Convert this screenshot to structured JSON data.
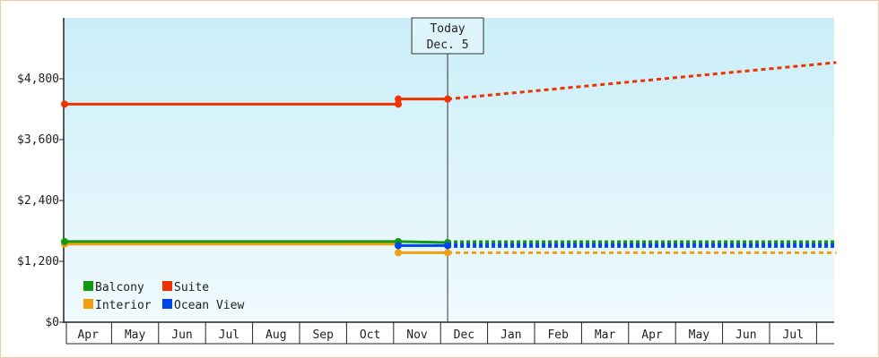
{
  "chart_data": {
    "type": "line",
    "title": "",
    "xlabel": "",
    "ylabel": "",
    "ylim": [
      0,
      6000
    ],
    "yticks": [
      {
        "value": 0,
        "label": "$0"
      },
      {
        "value": 1200,
        "label": "$1,200"
      },
      {
        "value": 2400,
        "label": "$2,400"
      },
      {
        "value": 3600,
        "label": "$3,600"
      },
      {
        "value": 4800,
        "label": "$4,800"
      }
    ],
    "x_start": "Apr",
    "categories": [
      "Apr",
      "May",
      "Jun",
      "Jul",
      "Aug",
      "Sep",
      "Oct",
      "Nov",
      "Dec",
      "Jan",
      "Feb",
      "Mar",
      "Apr",
      "May",
      "Jun",
      "Jul"
    ],
    "today": {
      "line1": "Today",
      "line2": "Dec. 5",
      "x": 8.15
    },
    "x_end": 16.42,
    "grid": false,
    "legend_position": "bottom-left",
    "series": [
      {
        "name": "Balcony",
        "color": "#119911",
        "values": [
          [
            0.0,
            1590
          ],
          [
            7.1,
            1590
          ],
          [
            8.15,
            1570
          ]
        ],
        "projection": [
          [
            8.15,
            1570
          ],
          [
            16.42,
            1570
          ]
        ],
        "dash": "dotted"
      },
      {
        "name": "Suite",
        "color": "#ee3300",
        "values": [
          [
            0.0,
            4300
          ],
          [
            7.1,
            4300
          ],
          [
            7.1,
            4400
          ],
          [
            8.15,
            4400
          ]
        ],
        "projection": [
          [
            8.15,
            4400
          ],
          [
            16.42,
            5120
          ]
        ],
        "dash": "dashed"
      },
      {
        "name": "Interior",
        "color": "#f0a010",
        "values": [
          [
            0.0,
            1540
          ],
          [
            7.1,
            1540
          ],
          [
            7.1,
            1370
          ],
          [
            8.15,
            1370
          ]
        ],
        "projection": [
          [
            8.15,
            1370
          ],
          [
            16.42,
            1370
          ]
        ],
        "dash": "dashed"
      },
      {
        "name": "Ocean View",
        "color": "#0044ee",
        "values": [
          [
            7.1,
            1510
          ],
          [
            8.15,
            1510
          ]
        ],
        "projection": [
          [
            8.15,
            1510
          ],
          [
            16.42,
            1510
          ]
        ],
        "dash": "dotted"
      }
    ]
  }
}
